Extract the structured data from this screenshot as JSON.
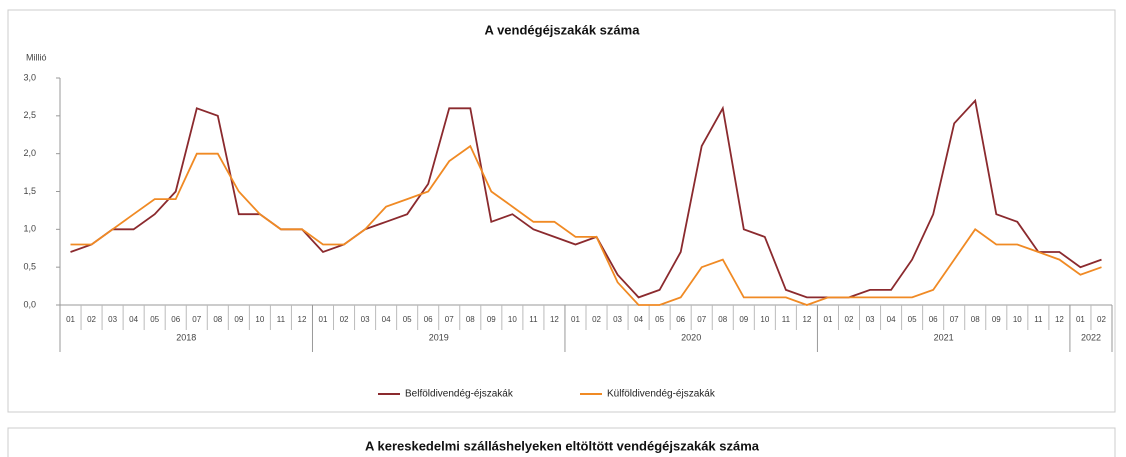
{
  "chart_data": [
    {
      "type": "line",
      "title": "A vendégéjszakák száma",
      "y_unit": "Millió",
      "categories": [
        "01",
        "02",
        "03",
        "04",
        "05",
        "06",
        "07",
        "08",
        "09",
        "10",
        "11",
        "12",
        "01",
        "02",
        "03",
        "04",
        "05",
        "06",
        "07",
        "08",
        "09",
        "10",
        "11",
        "12",
        "01",
        "02",
        "03",
        "04",
        "05",
        "06",
        "07",
        "08",
        "09",
        "10",
        "11",
        "12",
        "01",
        "02",
        "03",
        "04",
        "05",
        "06",
        "07",
        "08",
        "09",
        "10",
        "11",
        "12",
        "01",
        "02"
      ],
      "groups": [
        {
          "label": "2018",
          "span": 12
        },
        {
          "label": "2019",
          "span": 12
        },
        {
          "label": "2020",
          "span": 12
        },
        {
          "label": "2021",
          "span": 12
        },
        {
          "label": "2022",
          "span": 2
        }
      ],
      "series": [
        {
          "name": "Belföldivendég-éjszakák",
          "color": "#8b2a2e",
          "values": [
            0.7,
            0.8,
            1.0,
            1.0,
            1.2,
            1.5,
            2.6,
            2.5,
            1.2,
            1.2,
            1.0,
            1.0,
            0.7,
            0.8,
            1.0,
            1.1,
            1.2,
            1.6,
            2.6,
            2.6,
            1.1,
            1.2,
            1.0,
            0.9,
            0.8,
            0.9,
            0.4,
            0.1,
            0.2,
            0.7,
            2.1,
            2.6,
            1.0,
            0.9,
            0.2,
            0.1,
            0.1,
            0.1,
            0.2,
            0.2,
            0.6,
            1.2,
            2.4,
            2.7,
            1.2,
            1.1,
            0.7,
            0.7,
            0.5,
            0.6
          ]
        },
        {
          "name": "Külföldivendég-éjszakák",
          "color": "#f08a24",
          "values": [
            0.8,
            0.8,
            1.0,
            1.2,
            1.4,
            1.4,
            2.0,
            2.0,
            1.5,
            1.2,
            1.0,
            1.0,
            0.8,
            0.8,
            1.0,
            1.3,
            1.4,
            1.5,
            1.9,
            2.1,
            1.5,
            1.3,
            1.1,
            1.1,
            0.9,
            0.9,
            0.3,
            0.0,
            0.0,
            0.1,
            0.5,
            0.6,
            0.1,
            0.1,
            0.1,
            0.0,
            0.1,
            0.1,
            0.1,
            0.1,
            0.1,
            0.2,
            0.6,
            1.0,
            0.8,
            0.8,
            0.7,
            0.6,
            0.4,
            0.5
          ]
        }
      ],
      "ylim": [
        0,
        3.0
      ],
      "yticks": [
        {
          "value": 0,
          "label": "0,0"
        },
        {
          "value": 0.5,
          "label": "0,5"
        },
        {
          "value": 1.0,
          "label": "1,0"
        },
        {
          "value": 1.5,
          "label": "1,5"
        },
        {
          "value": 2.0,
          "label": "2,0"
        },
        {
          "value": 2.5,
          "label": "2,5"
        },
        {
          "value": 3.0,
          "label": "3,0"
        }
      ],
      "grid": false,
      "legend": "bottom"
    },
    {
      "title": "A kereskedelmi szálláshelyeken eltöltött vendégéjszakák száma"
    }
  ]
}
